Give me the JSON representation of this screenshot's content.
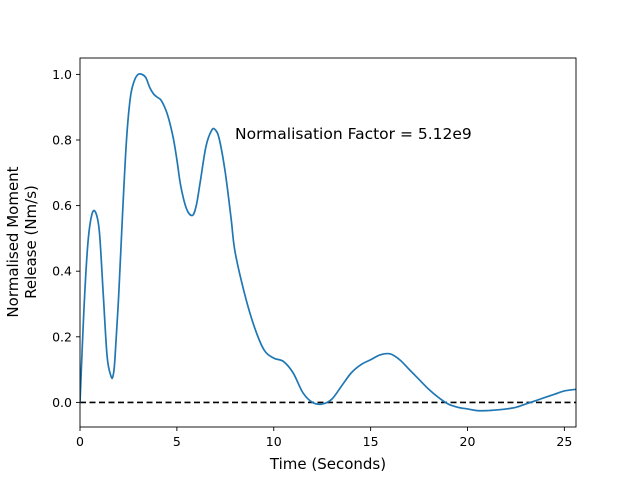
{
  "chart_data": {
    "type": "line",
    "title": "",
    "xlabel": "Time (Seconds)",
    "ylabel_lines": [
      "Normalised Moment",
      "Release (Nm/s)"
    ],
    "xlim": [
      0,
      25.6
    ],
    "ylim": [
      -0.075,
      1.05
    ],
    "xticks": [
      0,
      5,
      10,
      15,
      20,
      25
    ],
    "yticks": [
      0.0,
      0.2,
      0.4,
      0.6,
      0.8,
      1.0
    ],
    "xtick_labels": [
      "0",
      "5",
      "10",
      "15",
      "20",
      "25"
    ],
    "ytick_labels": [
      "0.0",
      "0.2",
      "0.4",
      "0.6",
      "0.8",
      "1.0"
    ],
    "grid": false,
    "legend": "none",
    "annotation": "Normalisation Factor = 5.12e9",
    "series": [
      {
        "color": "#1f77b4",
        "x": [
          0,
          0.2,
          0.4,
          0.6,
          0.8,
          1.0,
          1.2,
          1.4,
          1.6,
          1.7,
          1.8,
          2.0,
          2.2,
          2.4,
          2.6,
          2.8,
          3.0,
          3.2,
          3.4,
          3.6,
          3.8,
          4.0,
          4.2,
          4.5,
          4.8,
          5.0,
          5.2,
          5.5,
          5.8,
          6.0,
          6.2,
          6.5,
          6.8,
          7.0,
          7.2,
          7.5,
          7.8,
          8.0,
          8.5,
          9.0,
          9.5,
          10.0,
          10.5,
          11.0,
          11.5,
          12.0,
          12.5,
          13.0,
          13.5,
          14.0,
          14.5,
          15.0,
          15.5,
          16.0,
          16.5,
          17.0,
          17.5,
          18.0,
          18.5,
          19.0,
          19.5,
          20.0,
          20.5,
          21.0,
          21.5,
          22.0,
          22.5,
          23.0,
          23.5,
          24.0,
          24.5,
          25.0,
          25.6
        ],
        "y": [
          0.0,
          0.28,
          0.48,
          0.57,
          0.58,
          0.52,
          0.33,
          0.14,
          0.08,
          0.08,
          0.13,
          0.33,
          0.58,
          0.8,
          0.93,
          0.98,
          1.0,
          1.0,
          0.99,
          0.96,
          0.94,
          0.93,
          0.92,
          0.88,
          0.81,
          0.74,
          0.66,
          0.59,
          0.57,
          0.6,
          0.67,
          0.78,
          0.83,
          0.83,
          0.8,
          0.7,
          0.56,
          0.46,
          0.33,
          0.23,
          0.16,
          0.135,
          0.125,
          0.09,
          0.03,
          0.0,
          -0.005,
          0.01,
          0.05,
          0.09,
          0.115,
          0.13,
          0.145,
          0.148,
          0.13,
          0.1,
          0.07,
          0.04,
          0.015,
          -0.005,
          -0.015,
          -0.02,
          -0.025,
          -0.025,
          -0.023,
          -0.02,
          -0.015,
          -0.005,
          0.005,
          0.015,
          0.025,
          0.035,
          0.04
        ]
      }
    ],
    "reference_line": {
      "y": 0.0,
      "style": "dashed",
      "color": "#000000"
    }
  }
}
